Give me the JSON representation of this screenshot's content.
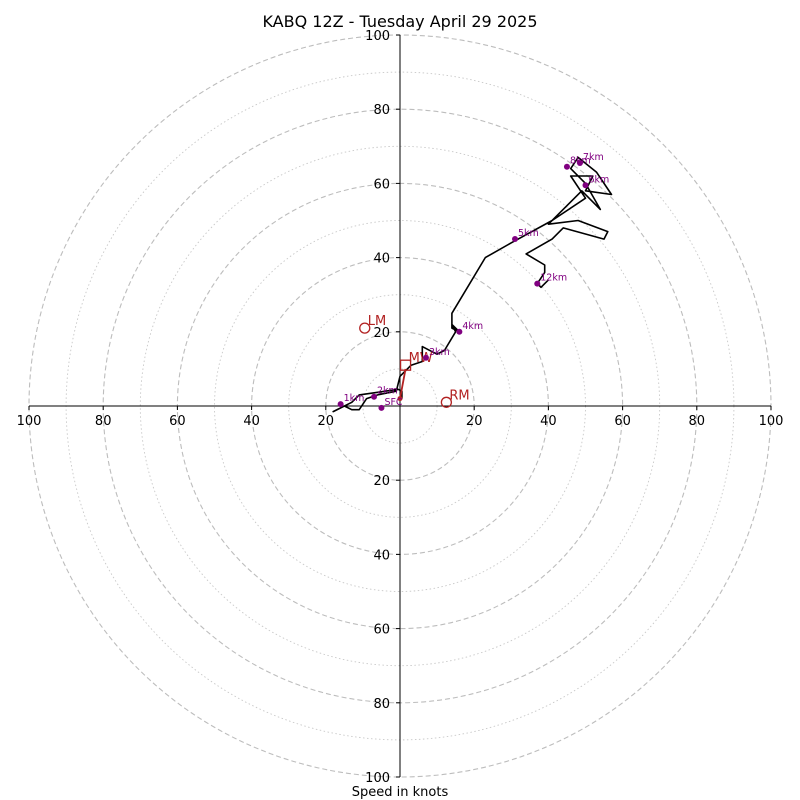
{
  "chart_data": {
    "type": "scatter",
    "subtype": "hodograph",
    "title": "KABQ 12Z - Tuesday April 29 2025",
    "xlabel": "Speed in knots",
    "units": "knots",
    "rings_major": [
      20,
      40,
      60,
      80,
      100
    ],
    "rings_minor": [
      10,
      30,
      50,
      70,
      90
    ],
    "xlim": [
      -100,
      100
    ],
    "ylim": [
      -100,
      100
    ],
    "x_tick_values": [
      -100,
      -80,
      -60,
      -40,
      -20,
      20,
      40,
      60,
      80,
      100
    ],
    "x_tick_labels": [
      "100",
      "80",
      "60",
      "40",
      "20",
      "20",
      "40",
      "60",
      "80",
      "100"
    ],
    "y_tick_values": [
      100,
      80,
      60,
      40,
      20,
      -20,
      -40,
      -60,
      -80,
      -100
    ],
    "y_tick_labels": [
      "100",
      "80",
      "60",
      "40",
      "20",
      "20",
      "40",
      "60",
      "80",
      "100"
    ],
    "colors": {
      "trace": "#000000",
      "levels": "#800080",
      "storm_motion": "#b22222",
      "grid": "#bdbdbd"
    },
    "trace": [
      [
        0.5,
        2
      ],
      [
        0.5,
        4
      ],
      [
        -0.5,
        4.5
      ],
      [
        -4,
        4
      ],
      [
        -11,
        3
      ],
      [
        -13,
        1
      ],
      [
        -17,
        -1
      ],
      [
        -18,
        -1.5
      ],
      [
        -15,
        0
      ],
      [
        -13,
        -1
      ],
      [
        -11,
        -1
      ],
      [
        -9,
        2
      ],
      [
        -6,
        3
      ],
      [
        -1,
        4
      ],
      [
        0,
        8
      ],
      [
        3,
        11
      ],
      [
        6,
        12
      ],
      [
        6,
        16
      ],
      [
        8,
        15
      ],
      [
        10,
        14
      ],
      [
        12,
        15
      ],
      [
        15,
        20
      ],
      [
        14,
        22
      ],
      [
        16,
        20
      ],
      [
        14,
        21
      ],
      [
        14,
        25
      ],
      [
        23,
        40
      ],
      [
        30,
        44
      ],
      [
        41,
        50
      ],
      [
        50,
        56
      ],
      [
        46,
        62
      ],
      [
        52,
        62
      ],
      [
        50,
        58
      ],
      [
        57,
        57
      ],
      [
        53,
        63
      ],
      [
        48,
        67
      ],
      [
        46,
        64
      ],
      [
        50,
        60
      ],
      [
        54,
        53
      ],
      [
        49,
        58
      ],
      [
        40,
        49
      ],
      [
        48,
        50
      ],
      [
        56,
        47
      ],
      [
        55,
        45
      ],
      [
        44,
        48
      ],
      [
        41,
        45
      ],
      [
        34,
        41
      ],
      [
        39,
        38
      ],
      [
        39,
        36
      ],
      [
        37,
        33
      ],
      [
        38,
        32
      ],
      [
        40,
        34
      ]
    ],
    "levels": [
      {
        "label": "SFC",
        "u": -5,
        "v": -0.5
      },
      {
        "label": "1km",
        "u": -16,
        "v": 0.5
      },
      {
        "label": "2km",
        "u": -7,
        "v": 2.5
      },
      {
        "label": "3km",
        "u": 7,
        "v": 13
      },
      {
        "label": "4km",
        "u": 16,
        "v": 20
      },
      {
        "label": "5km",
        "u": 31,
        "v": 45
      },
      {
        "label": "6km",
        "u": 50,
        "v": 59.5
      },
      {
        "label": "7km",
        "u": 48.5,
        "v": 65.5
      },
      {
        "label": "8km",
        "u": 45,
        "v": 64.5
      },
      {
        "label": "12km",
        "u": 37,
        "v": 33
      }
    ],
    "storm_motion": [
      {
        "label": "RM",
        "u": 12.5,
        "v": 1,
        "marker": "circle"
      },
      {
        "label": "LM",
        "u": -9.5,
        "v": 21,
        "marker": "circle"
      },
      {
        "label": "MW",
        "u": 1.5,
        "v": 11,
        "marker": "square"
      }
    ],
    "storm_vector": {
      "from": [
        0,
        2
      ],
      "to": [
        1.5,
        10
      ]
    }
  }
}
